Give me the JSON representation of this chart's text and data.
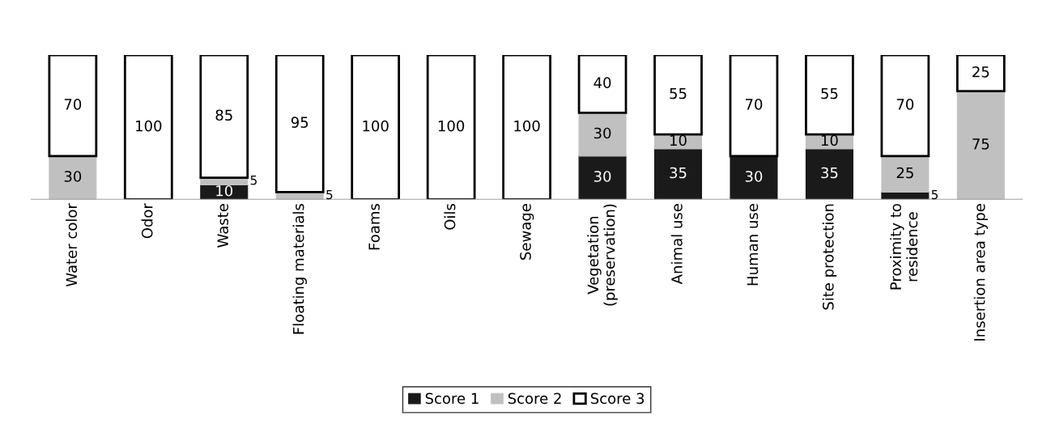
{
  "chart_data": {
    "type": "bar",
    "stacked": true,
    "categories": [
      "Water color",
      "Odor",
      "Waste",
      "Floating materials",
      "Foams",
      "Oils",
      "Sewage",
      "Vegetation (preservation)",
      "Animal use",
      "Human use",
      "Site protection",
      "Proximity to residence",
      "Insertion area type"
    ],
    "series": [
      {
        "name": "Score 1",
        "color": "#1a1a1a",
        "values": [
          0,
          0,
          10,
          0,
          0,
          0,
          0,
          30,
          35,
          30,
          35,
          5,
          0
        ],
        "value_labels": [
          null,
          null,
          "10",
          null,
          null,
          null,
          null,
          "30",
          "35",
          "30",
          "35",
          "5",
          null
        ]
      },
      {
        "name": "Score 2",
        "color": "#c0c0c0",
        "values": [
          30,
          0,
          5,
          5,
          0,
          0,
          0,
          30,
          10,
          0,
          10,
          25,
          75
        ],
        "value_labels": [
          "30",
          null,
          "5",
          "5",
          null,
          null,
          null,
          "30",
          "10",
          null,
          "10",
          "25",
          "75"
        ]
      },
      {
        "name": "Score 3",
        "color": "#ffffff",
        "values": [
          70,
          100,
          85,
          95,
          100,
          100,
          100,
          40,
          55,
          70,
          55,
          70,
          25
        ],
        "value_labels": [
          "70",
          "100",
          "85",
          "95",
          "100",
          "100",
          "100",
          "40",
          "55",
          "70",
          "55",
          "70",
          "25"
        ]
      }
    ],
    "ylim": [
      0,
      100
    ],
    "tick_labels": "x",
    "grid": false,
    "legend": "bottom"
  }
}
